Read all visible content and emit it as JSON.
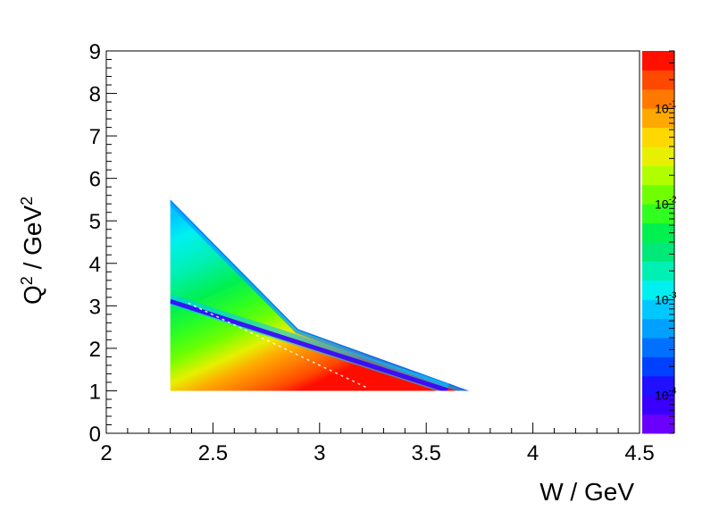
{
  "chart_data": {
    "type": "heatmap",
    "title": "",
    "xlabel": "W / GeV",
    "ylabel_parts": {
      "q": "Q",
      "q_exp": "2",
      "mid": " / GeV",
      "gev_exp": "2"
    },
    "xlim": [
      2,
      4.5
    ],
    "ylim": [
      0,
      9
    ],
    "x_ticks": [
      "2",
      "2.5",
      "3",
      "3.5",
      "4",
      "4.5"
    ],
    "x_tick_values": [
      2,
      2.5,
      3,
      3.5,
      4,
      4.5
    ],
    "y_ticks": [
      "0",
      "1",
      "2",
      "3",
      "4",
      "5",
      "6",
      "7",
      "8",
      "9"
    ],
    "y_tick_values": [
      0,
      1,
      2,
      3,
      4,
      5,
      6,
      7,
      8,
      9
    ],
    "colorbar": {
      "scale": "log",
      "zlim": [
        4e-05,
        0.4
      ],
      "labels": [
        {
          "base": "10",
          "exp": "-1",
          "value": 0.1
        },
        {
          "base": "10",
          "exp": "-2",
          "value": 0.01
        },
        {
          "base": "10",
          "exp": "-3",
          "value": 0.001
        },
        {
          "base": "10",
          "exp": "-4",
          "value": 0.0001
        }
      ],
      "palette": [
        "#6a00ff",
        "#3a00ff",
        "#1f10ff",
        "#0040ff",
        "#0070ff",
        "#00a0ff",
        "#00c8ff",
        "#00f0f0",
        "#00f0b4",
        "#00e878",
        "#00f050",
        "#30ff20",
        "#70ff00",
        "#b0ff00",
        "#e6f000",
        "#ffd800",
        "#ffa800",
        "#ff7800",
        "#ff4800",
        "#ff1000"
      ]
    },
    "populated_region": {
      "w_min": 2.3,
      "q2_min": 1.0,
      "boundary": [
        {
          "w": 2.3,
          "q2": 1.0
        },
        {
          "w": 2.3,
          "q2": 5.5
        },
        {
          "w": 2.9,
          "q2": 2.45
        },
        {
          "w": 3.7,
          "q2": 1.0
        }
      ],
      "low_density_band": {
        "from": {
          "w": 2.3,
          "q2": 3.15
        },
        "to": {
          "w": 3.6,
          "q2": 1.05
        }
      }
    }
  }
}
